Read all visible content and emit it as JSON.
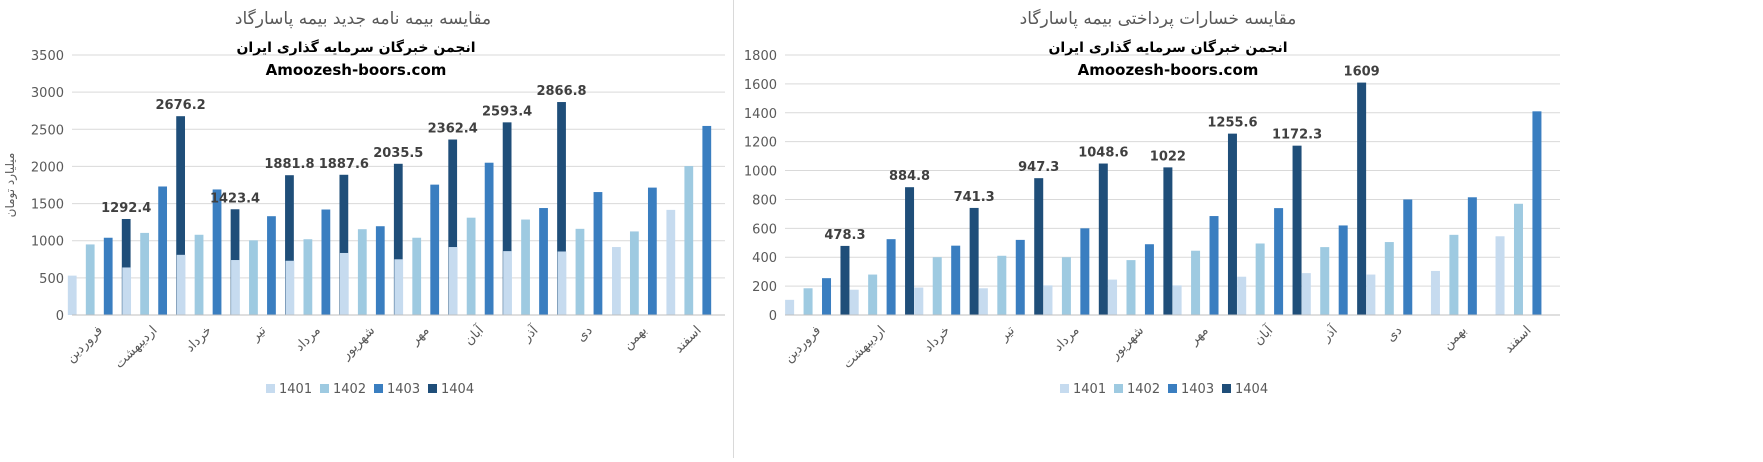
{
  "colors": {
    "1401": "#c6dbef",
    "1402": "#9ecae1",
    "1403": "#3a7ec0",
    "1404": "#1f4e79"
  },
  "charts": [
    {
      "title": "مقایسه بیمه نامه جدید بیمه پاسارگاد",
      "watermark_line1": "انجمن خبرگان سرمایه گذاری ایران",
      "watermark_line2": "Amoozesh-boors.com",
      "ylabel": "میلیارد تومان",
      "chart_data": {
        "type": "bar",
        "categories": [
          "فروردین",
          "اردیبهشت",
          "خرداد",
          "تیر",
          "مرداد",
          "شهریور",
          "مهر",
          "آبان",
          "آذر",
          "دی",
          "بهمن",
          "اسفند"
        ],
        "series": [
          {
            "name": "1401",
            "values": [
              530,
              640,
              810,
              740,
              730,
              835,
              750,
              915,
              860,
              855,
              915,
              1415
            ]
          },
          {
            "name": "1402",
            "values": [
              950,
              1105,
              1080,
              1005,
              1020,
              1155,
              1040,
              1310,
              1285,
              1160,
              1125,
              2005
            ]
          },
          {
            "name": "1403",
            "values": [
              1040,
              1730,
              1690,
              1330,
              1420,
              1195,
              1755,
              2050,
              1440,
              1655,
              1715,
              2545
            ]
          },
          {
            "name": "1404",
            "values": [
              1292.4,
              2676.2,
              1423.4,
              1881.8,
              1887.6,
              2035.5,
              2362.4,
              2593.4,
              2866.8,
              null,
              null,
              null
            ]
          }
        ],
        "data_labels": [
          "1292.4",
          "2676.2",
          "1423.4",
          "1881.8",
          "1887.6",
          "2035.5",
          "2362.4",
          "2593.4",
          "2866.8",
          null,
          null,
          null
        ],
        "ylim": [
          0,
          3500
        ],
        "yticks": [
          0,
          500,
          1000,
          1500,
          2000,
          2500,
          3000,
          3500
        ],
        "grid": true,
        "legend_position": "bottom",
        "legend": [
          "1401",
          "1402",
          "1403",
          "1404"
        ]
      }
    },
    {
      "title": "مقایسه خسارات پرداختی بیمه پاسارگاد",
      "watermark_line1": "انجمن خبرگان سرمایه گذاری ایران",
      "watermark_line2": "Amoozesh-boors.com",
      "ylabel": "",
      "chart_data": {
        "type": "bar",
        "categories": [
          "فروردین",
          "اردیبهشت",
          "خرداد",
          "تیر",
          "مرداد",
          "شهریور",
          "مهر",
          "آبان",
          "آذر",
          "دی",
          "بهمن",
          "اسفند"
        ],
        "series": [
          {
            "name": "1401",
            "values": [
              105,
              175,
              190,
              185,
              205,
              245,
              205,
              265,
              290,
              280,
              305,
              545
            ]
          },
          {
            "name": "1402",
            "values": [
              185,
              280,
              400,
              410,
              400,
              380,
              445,
              495,
              470,
              505,
              555,
              770
            ]
          },
          {
            "name": "1403",
            "values": [
              255,
              525,
              480,
              520,
              600,
              490,
              685,
              740,
              620,
              800,
              815,
              1410
            ]
          },
          {
            "name": "1404",
            "values": [
              478.3,
              884.8,
              741.3,
              947.3,
              1048.6,
              1022,
              1255.6,
              1172.3,
              1609,
              null,
              null,
              null
            ]
          }
        ],
        "data_labels": [
          "478.3",
          "884.8",
          "741.3",
          "947.3",
          "1048.6",
          "1022",
          "1255.6",
          "1172.3",
          "1609",
          null,
          null,
          null
        ],
        "ylim": [
          0,
          1800
        ],
        "yticks": [
          0,
          200,
          400,
          600,
          800,
          1000,
          1200,
          1400,
          1600,
          1800
        ],
        "grid": true,
        "legend_position": "bottom",
        "legend": [
          "1401",
          "1402",
          "1403",
          "1404"
        ]
      }
    }
  ]
}
